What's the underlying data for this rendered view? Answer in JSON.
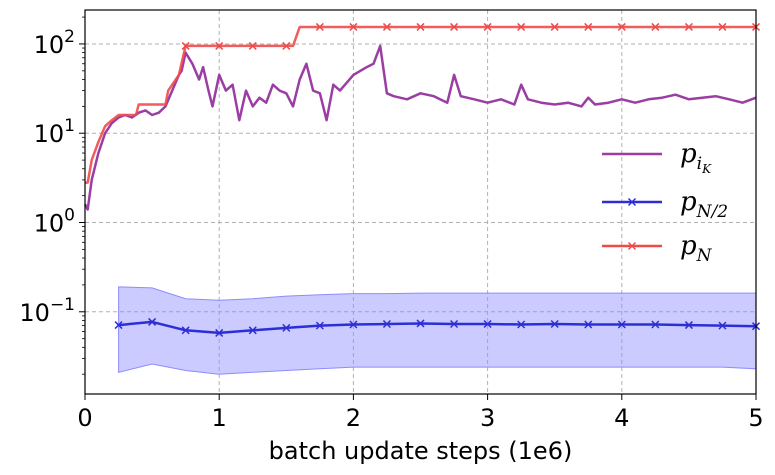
{
  "chart_data": {
    "type": "line",
    "xlabel": "batch update steps (1e6)",
    "ylabel": "",
    "xlim": [
      0,
      5
    ],
    "ylim": [
      0.012,
      240
    ],
    "y_scale": "log",
    "grid": true,
    "legend_position": "center-right",
    "x_ticks": [
      "0",
      "1",
      "2",
      "3",
      "4",
      "5"
    ],
    "y_ticks": [
      {
        "value": 0.1,
        "base": "10",
        "exp": "−1"
      },
      {
        "value": 1,
        "base": "10",
        "exp": "0"
      },
      {
        "value": 10,
        "base": "10",
        "exp": "1"
      },
      {
        "value": 100,
        "base": "10",
        "exp": "2"
      }
    ],
    "series": [
      {
        "name": "p_{i_K}",
        "legend_main": "p",
        "legend_sub": "i",
        "legend_subsub": "K",
        "color": "#9b3ea3",
        "marker": "none",
        "x": [
          0.0,
          0.02,
          0.05,
          0.1,
          0.15,
          0.2,
          0.25,
          0.3,
          0.35,
          0.4,
          0.45,
          0.5,
          0.55,
          0.6,
          0.65,
          0.7,
          0.72,
          0.75,
          0.8,
          0.85,
          0.88,
          0.92,
          0.95,
          1.0,
          1.05,
          1.1,
          1.15,
          1.2,
          1.25,
          1.3,
          1.35,
          1.4,
          1.45,
          1.5,
          1.55,
          1.6,
          1.65,
          1.7,
          1.75,
          1.8,
          1.85,
          1.9,
          2.0,
          2.1,
          2.15,
          2.2,
          2.25,
          2.3,
          2.4,
          2.5,
          2.6,
          2.7,
          2.75,
          2.8,
          2.9,
          3.0,
          3.1,
          3.2,
          3.25,
          3.3,
          3.4,
          3.5,
          3.6,
          3.7,
          3.75,
          3.8,
          3.9,
          4.0,
          4.1,
          4.2,
          4.3,
          4.4,
          4.5,
          4.6,
          4.7,
          4.8,
          4.9,
          5.0
        ],
        "y": [
          1.6,
          1.4,
          3.0,
          6.0,
          10.0,
          13.0,
          15.0,
          16.0,
          15.0,
          17.0,
          18.0,
          16.0,
          17.0,
          20.0,
          30.0,
          45.0,
          50.0,
          80.0,
          60.0,
          40.0,
          55.0,
          30.0,
          20.0,
          45.0,
          30.0,
          35.0,
          14.0,
          30.0,
          20.0,
          25.0,
          22.0,
          35.0,
          30.0,
          28.0,
          20.0,
          40.0,
          60.0,
          30.0,
          28.0,
          14.0,
          35.0,
          30.0,
          45.0,
          55.0,
          60.0,
          95.0,
          28.0,
          26.0,
          24.0,
          28.0,
          26.0,
          22.0,
          45.0,
          26.0,
          24.0,
          22.0,
          24.0,
          21.0,
          35.0,
          24.0,
          22.0,
          21.0,
          22.0,
          20.0,
          25.0,
          21.0,
          22.0,
          24.0,
          22.0,
          24.0,
          25.0,
          27.0,
          24.0,
          25.0,
          26.0,
          24.0,
          22.0,
          25.0
        ]
      },
      {
        "name": "p_{N/2}",
        "legend_main": "p",
        "legend_sub": "N/2",
        "legend_subsub": "",
        "color": "#2e2ed6",
        "marker": "x",
        "band_color": "#8c8cff",
        "x": [
          0.25,
          0.5,
          0.75,
          1.0,
          1.25,
          1.5,
          1.75,
          2.0,
          2.25,
          2.5,
          2.75,
          3.0,
          3.25,
          3.5,
          3.75,
          4.0,
          4.25,
          4.5,
          4.75,
          5.0
        ],
        "y": [
          0.071,
          0.077,
          0.062,
          0.058,
          0.062,
          0.066,
          0.07,
          0.072,
          0.073,
          0.074,
          0.073,
          0.073,
          0.072,
          0.073,
          0.072,
          0.072,
          0.072,
          0.071,
          0.07,
          0.069
        ],
        "upper": [
          0.19,
          0.185,
          0.14,
          0.135,
          0.14,
          0.15,
          0.155,
          0.16,
          0.16,
          0.162,
          0.162,
          0.162,
          0.162,
          0.162,
          0.162,
          0.162,
          0.162,
          0.162,
          0.162,
          0.162
        ],
        "lower": [
          0.021,
          0.026,
          0.022,
          0.02,
          0.021,
          0.022,
          0.023,
          0.024,
          0.024,
          0.024,
          0.024,
          0.024,
          0.024,
          0.024,
          0.024,
          0.024,
          0.024,
          0.024,
          0.024,
          0.023
        ]
      },
      {
        "name": "p_N",
        "legend_main": "p",
        "legend_sub": "N",
        "legend_subsub": "",
        "color": "#ef4a4a",
        "marker": "x",
        "marker_x": [
          0.75,
          1.0,
          1.25,
          1.5,
          1.75,
          2.0,
          2.25,
          2.5,
          2.75,
          3.0,
          3.25,
          3.5,
          3.75,
          4.0,
          4.25,
          4.5,
          4.75,
          5.0
        ],
        "x": [
          0.0,
          0.02,
          0.05,
          0.1,
          0.15,
          0.2,
          0.25,
          0.28,
          0.38,
          0.4,
          0.6,
          0.62,
          0.7,
          0.75,
          1.55,
          1.6,
          5.0
        ],
        "y": [
          2.8,
          2.8,
          5.0,
          8.0,
          12.0,
          14.0,
          16.0,
          16.0,
          16.0,
          21.0,
          21.0,
          30.0,
          45.0,
          95.0,
          95.0,
          155.0,
          155.0
        ]
      }
    ]
  }
}
